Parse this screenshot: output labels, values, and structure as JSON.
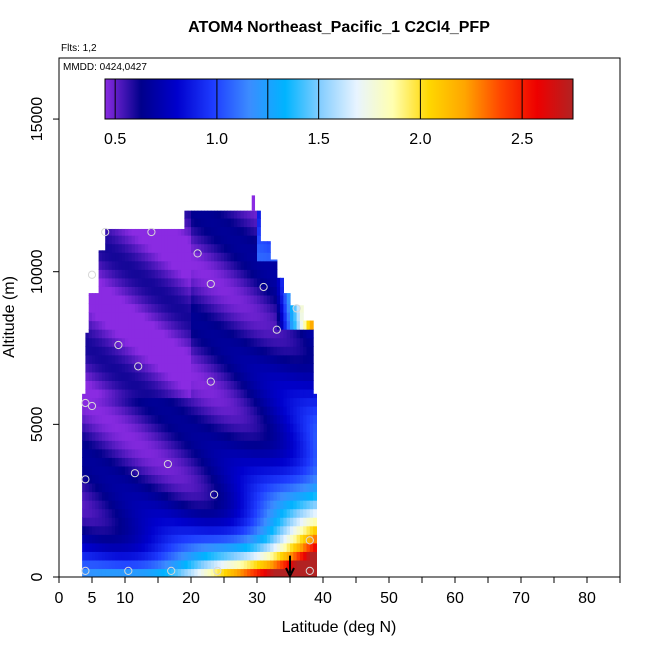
{
  "chart_data": {
    "type": "heatmap",
    "title": "ATOM4 Northeast_Pacific_1 C2Cl4_PFP",
    "flights_note": "Flts: 1,2",
    "date_note": "MMDD: 0424,0427",
    "xlabel": "Latitude (deg N)",
    "ylabel": "Altitude (m)",
    "xlim": [
      0,
      85
    ],
    "ylim": [
      0,
      17000
    ],
    "x_ticks": [
      0,
      5,
      10,
      20,
      30,
      40,
      50,
      60,
      70,
      80
    ],
    "x_tick_labels": [
      "0",
      "5",
      "10",
      "20",
      "30",
      "40",
      "50",
      "60",
      "70",
      "80"
    ],
    "x_minor_ticks": [
      15,
      25,
      35,
      45,
      55,
      65,
      75,
      85
    ],
    "y_ticks": [
      0,
      5000,
      10000,
      15000
    ],
    "y_tick_labels": [
      "0",
      "5000",
      "10000",
      "15000"
    ],
    "colorbar": {
      "range": [
        0.45,
        2.75
      ],
      "ticks": [
        0.5,
        1.0,
        1.5,
        2.0,
        2.5
      ],
      "tick_labels": [
        "0.5",
        "1.0",
        "1.5",
        "2.0",
        "2.5"
      ],
      "colors": [
        "#8a2be2",
        "#00008b",
        "#0000cd",
        "#1e3cff",
        "#3c8cff",
        "#00b4ff",
        "#87ceff",
        "#e8f4ff",
        "#ffffb0",
        "#ffd700",
        "#ffa500",
        "#ff4500",
        "#ee0000",
        "#b22222"
      ]
    },
    "sample_points": [
      {
        "lat": 4,
        "alt": 200
      },
      {
        "lat": 10.5,
        "alt": 200
      },
      {
        "lat": 17,
        "alt": 200
      },
      {
        "lat": 24,
        "alt": 200
      },
      {
        "lat": 38,
        "alt": 200
      },
      {
        "lat": 4,
        "alt": 3200
      },
      {
        "lat": 11.5,
        "alt": 3400
      },
      {
        "lat": 16.5,
        "alt": 3700
      },
      {
        "lat": 23.5,
        "alt": 2700
      },
      {
        "lat": 38,
        "alt": 1200
      },
      {
        "lat": 4,
        "alt": 5700
      },
      {
        "lat": 5,
        "alt": 5600
      },
      {
        "lat": 23,
        "alt": 6400
      },
      {
        "lat": 12,
        "alt": 6900
      },
      {
        "lat": 9,
        "alt": 7600
      },
      {
        "lat": 33,
        "alt": 8100
      },
      {
        "lat": 5,
        "alt": 9900
      },
      {
        "lat": 23,
        "alt": 9600
      },
      {
        "lat": 31,
        "alt": 9500
      },
      {
        "lat": 36,
        "alt": 8800
      },
      {
        "lat": 7,
        "alt": 11300
      },
      {
        "lat": 14,
        "alt": 11300
      },
      {
        "lat": 21,
        "alt": 10600
      }
    ],
    "arrow": {
      "lat": 35,
      "alt_top": 700
    }
  }
}
